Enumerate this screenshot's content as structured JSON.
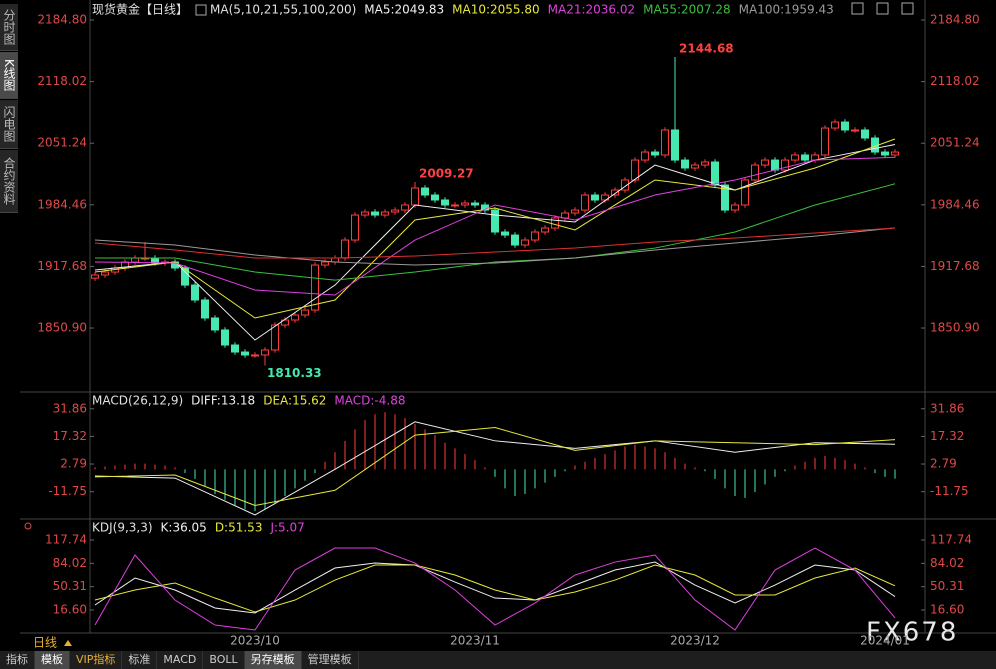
{
  "header": {
    "side_tabs": [
      "分时图",
      "K线图",
      "闪电图",
      "合约资料"
    ],
    "period": "日线",
    "bottom_tabs": [
      "指标",
      "模板",
      "VIP指标",
      "标准",
      "MACD",
      "BOLL",
      "另存模板",
      "管理模板"
    ]
  },
  "watermark": "FX678",
  "chart_data": [
    {
      "type": "candlestick",
      "title": "现货黄金【日线】",
      "params": "MA(5,10,21,55,100,200)",
      "up_color": "#ff3c3c",
      "down_color": "#46e8b0",
      "categories": [
        null,
        null,
        null,
        null,
        null,
        null,
        null,
        null,
        null,
        null,
        null,
        null,
        null,
        null,
        null,
        null,
        "2023/10",
        null,
        null,
        null,
        null,
        null,
        null,
        null,
        null,
        null,
        null,
        null,
        null,
        null,
        null,
        null,
        null,
        null,
        null,
        null,
        null,
        null,
        "2023/11",
        null,
        null,
        null,
        null,
        null,
        null,
        null,
        null,
        null,
        null,
        null,
        null,
        null,
        null,
        null,
        null,
        null,
        null,
        null,
        null,
        null,
        "2023/12",
        null,
        null,
        null,
        null,
        null,
        null,
        null,
        null,
        null,
        null,
        null,
        null,
        null,
        null,
        null,
        null,
        null,
        null,
        "2024/01",
        null
      ],
      "open": [
        1905.0,
        1908.4,
        1911.6,
        1916.0,
        1922.5,
        1926.8,
        1926.8,
        1921.4,
        1922.5,
        1916.0,
        1897.5,
        1881.3,
        1861.8,
        1848.8,
        1832.5,
        1824.9,
        1821.7,
        1821.7,
        1827.1,
        1854.2,
        1859.6,
        1865.0,
        1870.4,
        1919.2,
        1922.5,
        1926.8,
        1946.3,
        1973.4,
        1976.7,
        1973.4,
        1976.7,
        1978.8,
        1984.3,
        2002.7,
        1995.1,
        1989.7,
        1984.3,
        1984.3,
        1986.4,
        1984.3,
        1978.8,
        1955.0,
        1951.7,
        1940.9,
        1946.3,
        1955.0,
        1959.3,
        1970.2,
        1975.6,
        1978.8,
        1995.1,
        1989.7,
        1995.1,
        2000.5,
        2011.4,
        2033.0,
        2041.7,
        2038.5,
        2065.6,
        2033.0,
        2024.4,
        2027.6,
        2030.9,
        2005.9,
        1978.8,
        1984.3,
        2011.4,
        2027.6,
        2033.0,
        2022.2,
        2033.0,
        2038.5,
        2033.0,
        2038.5,
        2067.7,
        2074.2,
        2065.6,
        2065.6,
        2056.9,
        2041.7,
        2038.5
      ],
      "close": [
        1908.4,
        1911.6,
        1916.0,
        1922.5,
        1926.8,
        1926.8,
        1921.4,
        1922.5,
        1916.0,
        1897.5,
        1881.3,
        1861.8,
        1848.8,
        1832.5,
        1824.9,
        1821.7,
        1821.7,
        1827.1,
        1854.2,
        1859.6,
        1865.0,
        1870.4,
        1919.2,
        1922.5,
        1926.8,
        1946.3,
        1973.4,
        1976.7,
        1973.4,
        1976.7,
        1978.8,
        1984.3,
        2002.7,
        1995.1,
        1989.7,
        1984.3,
        1984.3,
        1986.4,
        1984.3,
        1978.8,
        1955.0,
        1951.7,
        1940.9,
        1946.3,
        1955.0,
        1959.3,
        1970.2,
        1975.6,
        1978.8,
        1995.1,
        1989.7,
        1995.1,
        2000.5,
        2011.4,
        2033.0,
        2041.7,
        2038.5,
        2065.6,
        2033.0,
        2024.4,
        2027.6,
        2030.9,
        2005.9,
        1978.8,
        1984.3,
        2011.4,
        2027.6,
        2033.0,
        2022.2,
        2033.0,
        2038.5,
        2033.0,
        2038.5,
        2067.7,
        2074.2,
        2065.6,
        2065.6,
        2056.9,
        2041.7,
        2038.5,
        2041.7
      ],
      "high": [
        1911.4,
        1914.6,
        1919.0,
        1925.5,
        1929.8,
        1944.0,
        1929.8,
        1925.5,
        1925.5,
        1919.0,
        1900.5,
        1884.3,
        1864.8,
        1851.8,
        1835.5,
        1827.9,
        1824.7,
        1830.1,
        1857.2,
        1862.6,
        1868.0,
        1873.4,
        1922.2,
        1925.5,
        1929.8,
        1949.3,
        1976.4,
        1979.7,
        1979.7,
        1979.7,
        1981.8,
        1987.3,
        2009.27,
        2005.7,
        1998.1,
        1992.7,
        1987.3,
        1989.4,
        1989.4,
        1987.3,
        1981.8,
        1958.0,
        1954.7,
        1949.3,
        1958.0,
        1962.3,
        1973.2,
        1978.6,
        1981.8,
        1998.1,
        1998.1,
        1998.1,
        2003.5,
        2014.4,
        2036.0,
        2044.7,
        2044.7,
        2068.6,
        2144.68,
        2036.0,
        2030.6,
        2033.9,
        2033.9,
        2008.9,
        1987.3,
        2014.4,
        2030.6,
        2036.0,
        2036.0,
        2036.0,
        2041.5,
        2041.5,
        2041.5,
        2070.7,
        2077.2,
        2077.2,
        2068.6,
        2068.6,
        2059.9,
        2044.7,
        2044.7
      ],
      "low": [
        1902.0,
        1905.4,
        1908.6,
        1913.0,
        1919.5,
        1923.8,
        1918.4,
        1918.4,
        1913.0,
        1894.5,
        1878.3,
        1858.8,
        1845.8,
        1829.5,
        1821.9,
        1818.7,
        1818.7,
        1810.33,
        1824.1,
        1851.2,
        1856.6,
        1862.0,
        1867.4,
        1916.2,
        1919.5,
        1923.8,
        1943.3,
        1970.4,
        1970.4,
        1970.4,
        1973.7,
        1975.8,
        1981.3,
        1992.1,
        1986.7,
        1981.3,
        1981.3,
        1981.3,
        1981.3,
        1975.8,
        1952.0,
        1948.7,
        1937.9,
        1937.9,
        1943.3,
        1952.0,
        1956.3,
        1967.2,
        1972.6,
        1975.8,
        1986.7,
        1986.7,
        1992.1,
        1997.5,
        2008.4,
        2030.0,
        2035.5,
        2035.5,
        2030.0,
        2021.4,
        2021.4,
        2024.6,
        2002.9,
        1975.8,
        1975.8,
        1981.3,
        2008.4,
        2024.6,
        2019.2,
        2019.2,
        2030.0,
        2030.0,
        2030.0,
        2035.5,
        2064.7,
        2062.6,
        2062.6,
        2053.9,
        2038.7,
        2035.5,
        2035.5
      ],
      "series": [
        {
          "name": "MA5:2049.83",
          "color": "#f0f0f0",
          "x": [
            0,
            8,
            16,
            24,
            32,
            40,
            48,
            56,
            64,
            72,
            80
          ],
          "values": [
            1913.8,
            1922.5,
            1837.9,
            1897.5,
            1984.3,
            1973.4,
            1965.8,
            2027.6,
            2000.5,
            2033.0,
            2049.83
          ]
        },
        {
          "name": "MA10:2055.80",
          "color": "#e8e83a",
          "x": [
            0,
            8,
            16,
            24,
            32,
            40,
            48,
            56,
            64,
            72,
            80
          ],
          "values": [
            1911.6,
            1922.5,
            1861.8,
            1881.3,
            1968.0,
            1981.0,
            1957.2,
            2011.4,
            2000.5,
            2024.4,
            2055.8
          ]
        },
        {
          "name": "MA21:2036.02",
          "color": "#e040e0",
          "x": [
            0,
            8,
            16,
            24,
            32,
            40,
            48,
            56,
            64,
            72,
            80
          ],
          "values": [
            1922.5,
            1921.4,
            1892.1,
            1886.7,
            1946.3,
            1984.3,
            1968.0,
            1995.1,
            2011.4,
            2033.0,
            2036.02
          ]
        },
        {
          "name": "MA55:2007.28",
          "color": "#3cc03c",
          "x": [
            0,
            8,
            16,
            24,
            32,
            40,
            48,
            56,
            64,
            72,
            80
          ],
          "values": [
            1926.8,
            1926.8,
            1911.6,
            1902.9,
            1911.6,
            1922.5,
            1926.8,
            1937.6,
            1955.0,
            1984.3,
            2007.28
          ]
        },
        {
          "name": "MA100:1959.43",
          "color": "#9a9a9a",
          "x": [
            0,
            8,
            16,
            24,
            32,
            40,
            48,
            56,
            64,
            72,
            80
          ],
          "values": [
            1946.3,
            1940.9,
            1930.1,
            1922.5,
            1919.2,
            1921.4,
            1926.8,
            1935.5,
            1943.1,
            1950.6,
            1959.43
          ]
        },
        {
          "name": null,
          "color": "#e03030",
          "x": [
            0,
            8,
            16,
            24,
            32,
            40,
            48,
            56,
            64,
            72,
            80
          ],
          "values": [
            1943.1,
            1935.5,
            1926.8,
            1926.8,
            1929.0,
            1933.3,
            1937.6,
            1944.2,
            1948.5,
            1953.9,
            1959.3
          ]
        }
      ],
      "ylim": [
        1785.9,
        2200.0
      ],
      "yticks": [
        {
          "value": 2184.8,
          "label": "2184.80"
        },
        2118.02,
        2051.24,
        1984.46,
        1917.68,
        {
          "value": 1850.9,
          "label": "1850.90"
        }
      ]
    },
    {
      "type": "macd",
      "title": "MACD(26,12,9)",
      "up_color": "#ff3c3c",
      "down_color": "#46e8b0",
      "histogram": {
        "name": "MACD:-4.88",
        "color": "#e040e0",
        "values": [
          1,
          1.5,
          2,
          2.5,
          3,
          3,
          2.5,
          2,
          1,
          -2,
          -5,
          -9,
          -13,
          -16,
          -19,
          -21,
          -22,
          -21,
          -18,
          -14,
          -10,
          -6,
          -2,
          4,
          9,
          15,
          21,
          26,
          29,
          30,
          29,
          27,
          24,
          21,
          18,
          14,
          11,
          8,
          5,
          1,
          -4,
          -10,
          -14,
          -13,
          -10,
          -7,
          -4,
          -1,
          2,
          4,
          6,
          8,
          10,
          12,
          13,
          12,
          11,
          9,
          6,
          3,
          1,
          -1,
          -5,
          -10,
          -14,
          -15,
          -12,
          -8,
          -4,
          -1,
          2,
          4,
          6,
          7,
          6,
          5,
          3,
          1,
          -2,
          -4,
          -4.88
        ]
      },
      "series": [
        {
          "name": "DIFF:13.18",
          "color": "#f0f0f0",
          "x": [
            0,
            8,
            16,
            24,
            32,
            40,
            48,
            56,
            64,
            72,
            80
          ],
          "values": [
            -3.5,
            -4.6,
            -24,
            0,
            25,
            15,
            11,
            15,
            9,
            14,
            13.18
          ]
        },
        {
          "name": "DEA:15.62",
          "color": "#e8e83a",
          "x": [
            0,
            8,
            16,
            24,
            32,
            40,
            48,
            56,
            64,
            72,
            80
          ],
          "values": [
            -4,
            -3,
            -19,
            -11,
            18,
            22,
            10,
            15,
            14,
            13,
            15.62
          ]
        }
      ],
      "ylim": [
        -25.6,
        39.1
      ],
      "yticks": [
        31.86,
        17.32,
        2.79,
        -11.75
      ]
    },
    {
      "type": "line",
      "title": "KDJ(9,3,3)",
      "series": [
        {
          "name": "K:36.05",
          "color": "#f0f0f0",
          "x": [
            0,
            4,
            8,
            12,
            16,
            20,
            24,
            28,
            32,
            36,
            40,
            44,
            48,
            52,
            56,
            60,
            64,
            68,
            72,
            76,
            80
          ],
          "values": [
            23.8,
            62.8,
            45.5,
            19.5,
            12.3,
            45.5,
            77.3,
            84.5,
            81.6,
            57.0,
            33.9,
            31.0,
            52.7,
            74.4,
            85.9,
            52.7,
            26.7,
            52.7,
            81.6,
            74.4,
            36.05
          ]
        },
        {
          "name": "D:51.53",
          "color": "#e8e83a",
          "x": [
            0,
            4,
            8,
            12,
            16,
            20,
            24,
            28,
            32,
            36,
            40,
            44,
            48,
            52,
            56,
            60,
            64,
            68,
            72,
            76,
            80
          ],
          "values": [
            31.0,
            45.5,
            55.6,
            33.9,
            13.7,
            31.0,
            59.9,
            81.6,
            81.6,
            67.2,
            45.5,
            31.0,
            42.6,
            59.9,
            81.6,
            67.2,
            38.3,
            38.3,
            62.8,
            77.3,
            51.53
          ]
        },
        {
          "name": "J:5.07",
          "color": "#e040e0",
          "x": [
            0,
            4,
            8,
            12,
            16,
            20,
            24,
            28,
            32,
            36,
            40,
            44,
            48,
            52,
            56,
            60,
            64,
            68,
            72,
            76,
            80
          ],
          "values": [
            -5.1,
            96.1,
            31.0,
            -5.1,
            -12.3,
            74.4,
            106.2,
            106.2,
            84.5,
            45.5,
            -5.1,
            26.7,
            67.2,
            85.9,
            96.1,
            31.0,
            -12.3,
            74.4,
            106.2,
            74.4,
            5.07
          ]
        }
      ],
      "ylim": [
        -15.2,
        143.8
      ],
      "yticks": [
        {
          "value": 117.74,
          "label": "117.74"
        },
        84.02,
        50.31,
        {
          "value": 16.6,
          "label": "16.60"
        }
      ]
    }
  ]
}
